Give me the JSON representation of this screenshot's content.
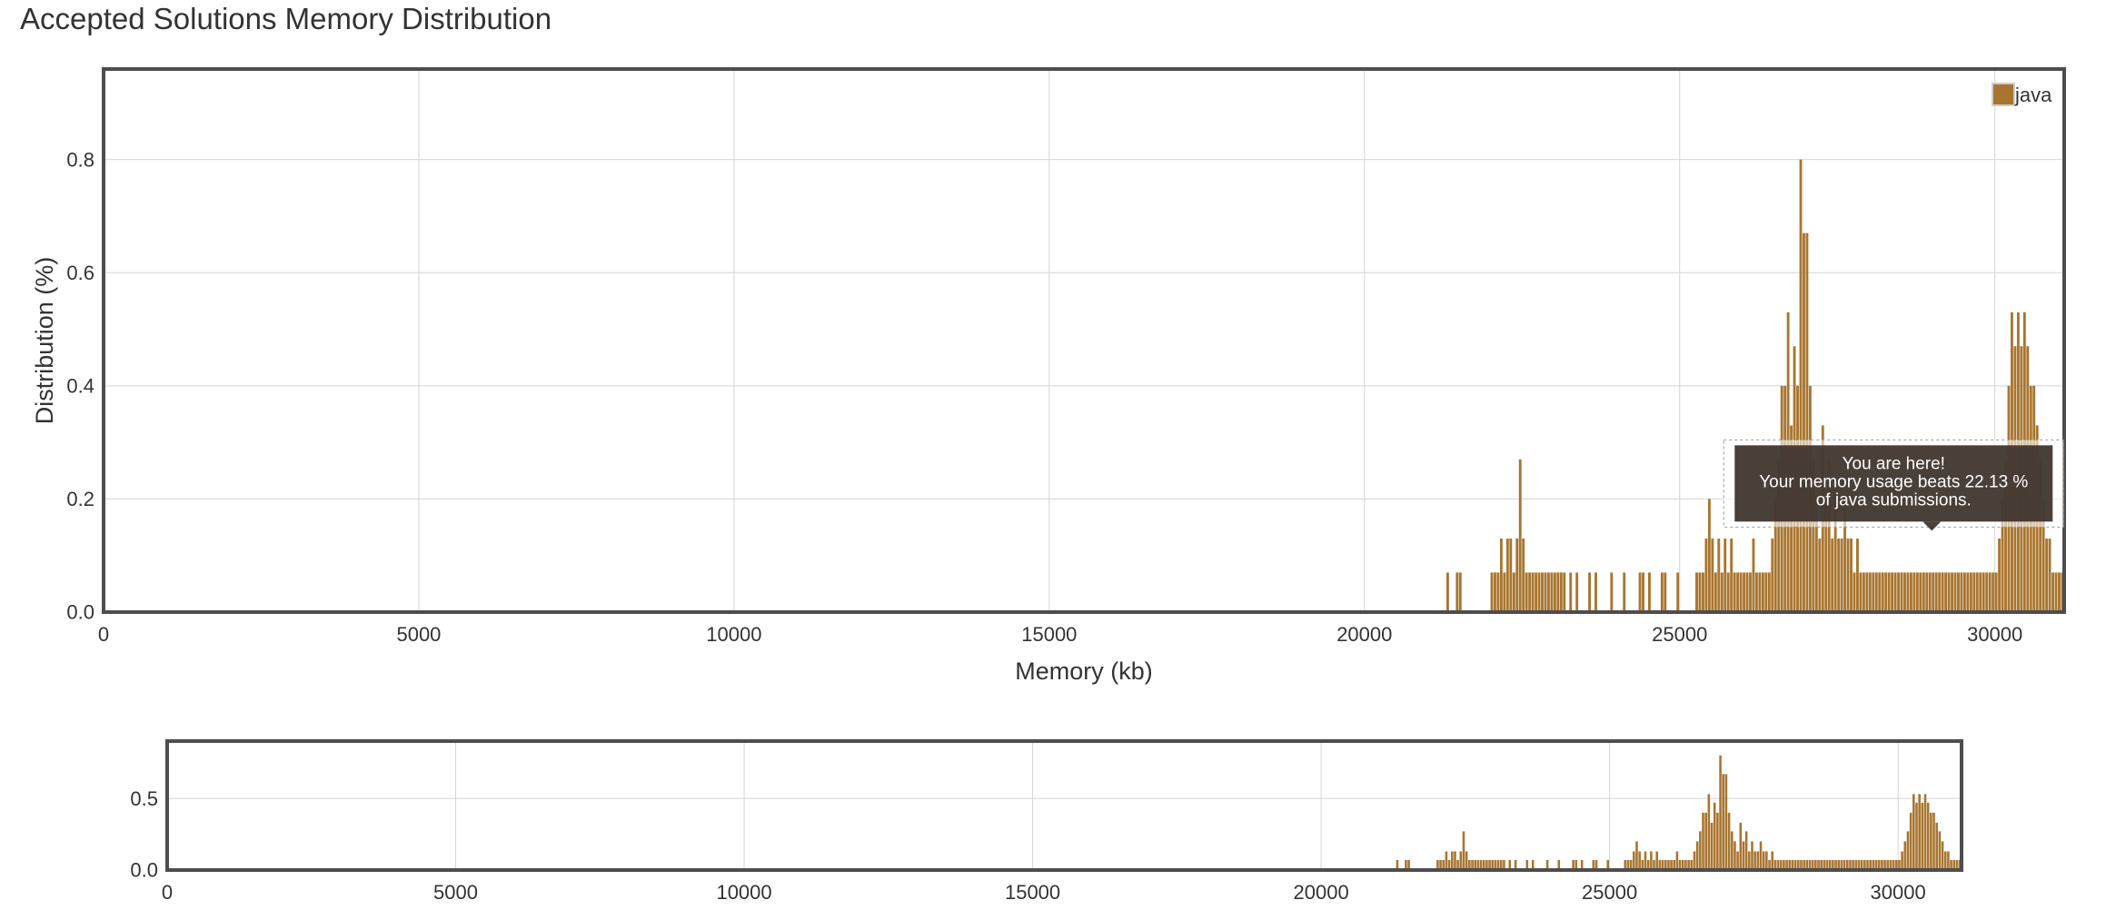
{
  "title": "Accepted Solutions Memory Distribution",
  "chart_data": [
    {
      "id": "main",
      "type": "bar",
      "xlabel": "Memory (kb)",
      "ylabel": "Distribution (%)",
      "xlim": [
        0,
        31100
      ],
      "ylim": [
        0,
        0.96
      ],
      "xticks": [
        0,
        5000,
        10000,
        15000,
        20000,
        25000,
        30000
      ],
      "xtick_labels": [
        "0",
        "5000",
        "10000",
        "15000",
        "20000",
        "25000",
        "30000"
      ],
      "yticks": [
        0.0,
        0.2,
        0.4,
        0.6,
        0.8
      ],
      "ytick_labels": [
        "0.0",
        "0.2",
        "0.4",
        "0.6",
        "0.8"
      ],
      "grid": true,
      "legend": {
        "position": "top-right",
        "entries": [
          "java"
        ]
      },
      "bar_width": 50,
      "series": [
        {
          "name": "java",
          "color": "#a8752f",
          "x": [
            21300,
            21450,
            21500,
            22000,
            22050,
            22100,
            22150,
            22200,
            22250,
            22300,
            22350,
            22400,
            22450,
            22500,
            22550,
            22600,
            22650,
            22700,
            22750,
            22800,
            22850,
            22900,
            22950,
            23000,
            23050,
            23100,
            23150,
            23250,
            23350,
            23550,
            23650,
            23900,
            24100,
            24350,
            24400,
            24500,
            24700,
            24750,
            24950,
            25250,
            25300,
            25350,
            25400,
            25450,
            25500,
            25550,
            25600,
            25650,
            25700,
            25750,
            25800,
            25850,
            25900,
            25950,
            26000,
            26050,
            26100,
            26150,
            26200,
            26250,
            26300,
            26350,
            26400,
            26450,
            26500,
            26550,
            26600,
            26650,
            26700,
            26750,
            26800,
            26850,
            26900,
            26950,
            27000,
            27050,
            27100,
            27150,
            27200,
            27250,
            27300,
            27350,
            27400,
            27450,
            27500,
            27550,
            27600,
            27650,
            27700,
            27750,
            27800,
            27850,
            27900,
            27950,
            28000,
            28050,
            28100,
            28150,
            28200,
            28250,
            28300,
            28350,
            28400,
            28450,
            28500,
            28550,
            28600,
            28650,
            28700,
            28750,
            28800,
            28850,
            28900,
            28950,
            29000,
            29050,
            29100,
            29150,
            29200,
            29250,
            29300,
            29350,
            29400,
            29450,
            29500,
            29550,
            29600,
            29650,
            29700,
            29750,
            29800,
            29850,
            29900,
            29950,
            30000,
            30050,
            30100,
            30150,
            30200,
            30250,
            30300,
            30350,
            30400,
            30450,
            30500,
            30550,
            30600,
            30650,
            30700,
            30750,
            30800,
            30850,
            30900,
            30950,
            31000,
            31050
          ],
          "values": [
            0.07,
            0.07,
            0.07,
            0.07,
            0.07,
            0.07,
            0.13,
            0.07,
            0.13,
            0.13,
            0.07,
            0.13,
            0.27,
            0.13,
            0.07,
            0.07,
            0.07,
            0.07,
            0.07,
            0.07,
            0.07,
            0.07,
            0.07,
            0.07,
            0.07,
            0.07,
            0.07,
            0.07,
            0.07,
            0.07,
            0.07,
            0.07,
            0.07,
            0.07,
            0.07,
            0.07,
            0.07,
            0.07,
            0.07,
            0.07,
            0.07,
            0.07,
            0.13,
            0.2,
            0.13,
            0.07,
            0.13,
            0.07,
            0.13,
            0.07,
            0.13,
            0.07,
            0.07,
            0.07,
            0.07,
            0.07,
            0.07,
            0.13,
            0.07,
            0.07,
            0.07,
            0.07,
            0.07,
            0.13,
            0.2,
            0.27,
            0.4,
            0.4,
            0.53,
            0.33,
            0.47,
            0.4,
            0.8,
            0.67,
            0.67,
            0.4,
            0.27,
            0.2,
            0.13,
            0.33,
            0.2,
            0.27,
            0.13,
            0.2,
            0.13,
            0.13,
            0.2,
            0.13,
            0.13,
            0.07,
            0.13,
            0.07,
            0.07,
            0.07,
            0.07,
            0.07,
            0.07,
            0.07,
            0.07,
            0.07,
            0.07,
            0.07,
            0.07,
            0.07,
            0.07,
            0.07,
            0.07,
            0.07,
            0.07,
            0.07,
            0.07,
            0.07,
            0.07,
            0.07,
            0.07,
            0.07,
            0.07,
            0.07,
            0.07,
            0.07,
            0.07,
            0.07,
            0.07,
            0.07,
            0.07,
            0.07,
            0.07,
            0.07,
            0.07,
            0.07,
            0.07,
            0.07,
            0.07,
            0.07,
            0.07,
            0.13,
            0.2,
            0.27,
            0.4,
            0.53,
            0.47,
            0.53,
            0.47,
            0.53,
            0.47,
            0.4,
            0.4,
            0.33,
            0.27,
            0.2,
            0.13,
            0.13,
            0.07,
            0.07,
            0.07,
            0.07
          ]
        }
      ],
      "annotations": {
        "tooltip_lines": [
          "You are here!",
          "Your memory usage beats 22.13 %",
          "of java submissions."
        ],
        "tooltip_x": 29000,
        "tooltip_y": 0.16
      }
    },
    {
      "id": "navigator",
      "type": "bar",
      "xlim": [
        0,
        31100
      ],
      "ylim": [
        0,
        0.9
      ],
      "xticks": [
        0,
        5000,
        10000,
        15000,
        20000,
        25000,
        30000
      ],
      "xtick_labels": [
        "0",
        "5000",
        "10000",
        "15000",
        "20000",
        "25000",
        "30000"
      ],
      "yticks": [
        0.0,
        0.5
      ],
      "ytick_labels": [
        "0.0",
        "0.5"
      ],
      "grid": true,
      "series_ref": "main"
    }
  ],
  "colors": {
    "bar": "#a8752f",
    "grid": "#d4d4d4",
    "frame": "#4d4d4d",
    "tooltip_bg": "#3b3029",
    "tooltip_text": "#ffffff"
  }
}
